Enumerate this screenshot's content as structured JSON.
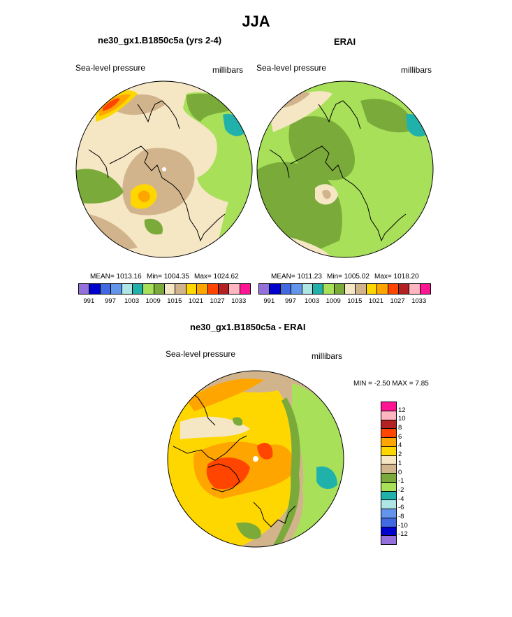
{
  "figure": {
    "title": "JJA",
    "variable_label": "Sea-level pressure",
    "units_label": "millibars"
  },
  "palette": {
    "abs_colors": [
      "#9370db",
      "#0000cd",
      "#4169e1",
      "#6495ed",
      "#aee6e6",
      "#20b2aa",
      "#a8e05a",
      "#7aaa3a",
      "#f5e6c4",
      "#d2b48c",
      "#ffd700",
      "#ffa500",
      "#ff4500",
      "#b22222",
      "#ffb6c1",
      "#ff1493"
    ],
    "diff_colors": [
      "#ff1493",
      "#ffb6c1",
      "#b22222",
      "#ff4500",
      "#ffa500",
      "#ffd700",
      "#f5e6c4",
      "#d2b48c",
      "#7aaa3a",
      "#a8e05a",
      "#20b2aa",
      "#aee6e6",
      "#6495ed",
      "#4169e1",
      "#0000cd",
      "#9370db"
    ],
    "land_outline": "#000000"
  },
  "chart_data": [
    {
      "type": "heatmap",
      "projection": "polar-stereographic",
      "title": "ne30_gx1.B1850c5a (yrs 2-4)",
      "variable": "Sea-level pressure",
      "units": "millibars",
      "stats": {
        "mean": "MEAN= 1013.16",
        "min": "Min= 1004.35",
        "max": "Max= 1024.62"
      },
      "colorbar_ticks": [
        "991",
        "997",
        "1003",
        "1009",
        "1015",
        "1021",
        "1027",
        "1033"
      ]
    },
    {
      "type": "heatmap",
      "projection": "polar-stereographic",
      "title": "ERAI",
      "variable": "Sea-level pressure",
      "units": "millibars",
      "stats": {
        "mean": "MEAN= 1011.23",
        "min": "Min= 1005.02",
        "max": "Max= 1018.20"
      },
      "colorbar_ticks": [
        "991",
        "997",
        "1003",
        "1009",
        "1015",
        "1021",
        "1027",
        "1033"
      ]
    },
    {
      "type": "heatmap",
      "projection": "polar-stereographic",
      "title": "ne30_gx1.B1850c5a - ERAI",
      "variable": "Sea-level pressure",
      "units": "millibars",
      "range_text": "MIN =  -2.50 MAX =   7.85",
      "min": -2.5,
      "max": 7.85,
      "colorbar_ticks": [
        "12",
        "10",
        "8",
        "6",
        "4",
        "2",
        "1",
        "0",
        "-1",
        "-2",
        "-4",
        "-6",
        "-8",
        "-10",
        "-12"
      ]
    }
  ]
}
